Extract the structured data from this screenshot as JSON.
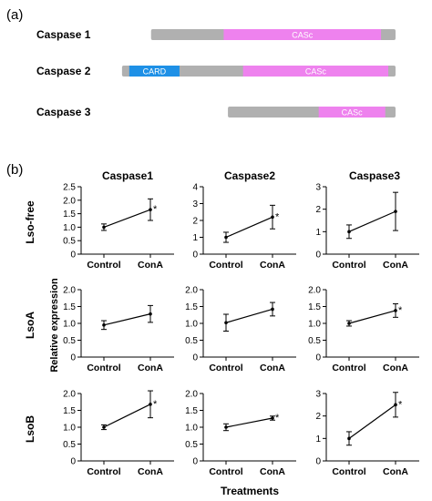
{
  "panel_a": {
    "label": "(a)",
    "proteins": [
      {
        "name": "Caspase 1",
        "length": 404,
        "domains": [
          {
            "name": "CASc",
            "start": 120,
            "end": 380,
            "color": "#ee82ee"
          }
        ]
      },
      {
        "name": "Caspase 2",
        "length": 452,
        "domains": [
          {
            "name": "CARD",
            "start": 12,
            "end": 95,
            "color": "#1e90e6"
          },
          {
            "name": "CASc",
            "start": 200,
            "end": 440,
            "color": "#ee82ee"
          }
        ]
      },
      {
        "name": "Caspase 3",
        "length": 277,
        "domains": [
          {
            "name": "CASc",
            "start": 150,
            "end": 260,
            "color": "#ee82ee"
          }
        ]
      }
    ],
    "bar_color": "#b0b0b0"
  },
  "panel_b": {
    "label": "(b)",
    "column_titles": [
      "Caspase1",
      "Caspase2",
      "Caspase3"
    ],
    "row_titles": [
      "Lso-free",
      "LsoA",
      "LsoB"
    ],
    "ylabel": "Relative expression",
    "xlabel": "Treatments"
  },
  "chart_data": [
    {
      "type": "line",
      "row": "Lso-free",
      "column": "Caspase1",
      "categories": [
        "Control",
        "ConA"
      ],
      "values": [
        1.0,
        1.65
      ],
      "errors": [
        0.12,
        0.4
      ],
      "ylim": [
        0,
        2.5
      ],
      "yticks": [
        "0",
        "0.5",
        "1.0",
        "1.5",
        "2.0",
        "2.5"
      ],
      "significant": "*"
    },
    {
      "type": "line",
      "row": "Lso-free",
      "column": "Caspase2",
      "categories": [
        "Control",
        "ConA"
      ],
      "values": [
        1.0,
        2.2
      ],
      "errors": [
        0.3,
        0.7
      ],
      "ylim": [
        0,
        4
      ],
      "yticks": [
        "0",
        "1",
        "2",
        "3",
        "4"
      ],
      "significant": "*"
    },
    {
      "type": "line",
      "row": "Lso-free",
      "column": "Caspase3",
      "categories": [
        "Control",
        "ConA"
      ],
      "values": [
        1.0,
        1.9
      ],
      "errors": [
        0.3,
        0.85
      ],
      "ylim": [
        0,
        3
      ],
      "yticks": [
        "0",
        "1",
        "2",
        "3"
      ],
      "significant": ""
    },
    {
      "type": "line",
      "row": "LsoA",
      "column": "Caspase1",
      "categories": [
        "Control",
        "ConA"
      ],
      "values": [
        0.95,
        1.28
      ],
      "errors": [
        0.13,
        0.25
      ],
      "ylim": [
        0,
        2.0
      ],
      "yticks": [
        "0",
        "0.5",
        "1.0",
        "1.5",
        "2.0"
      ],
      "significant": ""
    },
    {
      "type": "line",
      "row": "LsoA",
      "column": "Caspase2",
      "categories": [
        "Control",
        "ConA"
      ],
      "values": [
        1.02,
        1.42
      ],
      "errors": [
        0.25,
        0.2
      ],
      "ylim": [
        0,
        2.0
      ],
      "yticks": [
        "0",
        "0.5",
        "1.0",
        "1.5",
        "2.0"
      ],
      "significant": ""
    },
    {
      "type": "line",
      "row": "LsoA",
      "column": "Caspase3",
      "categories": [
        "Control",
        "ConA"
      ],
      "values": [
        1.0,
        1.38
      ],
      "errors": [
        0.08,
        0.2
      ],
      "ylim": [
        0,
        2.0
      ],
      "yticks": [
        "0",
        "0.5",
        "1.0",
        "1.5",
        "2.0"
      ],
      "significant": "*"
    },
    {
      "type": "line",
      "row": "LsoB",
      "column": "Caspase1",
      "categories": [
        "Control",
        "ConA"
      ],
      "values": [
        1.0,
        1.68
      ],
      "errors": [
        0.07,
        0.4
      ],
      "ylim": [
        0,
        2.0
      ],
      "yticks": [
        "0",
        "0.5",
        "1.0",
        "1.5",
        "2.0"
      ],
      "significant": "*"
    },
    {
      "type": "line",
      "row": "LsoB",
      "column": "Caspase2",
      "categories": [
        "Control",
        "ConA"
      ],
      "values": [
        1.0,
        1.27
      ],
      "errors": [
        0.1,
        0.06
      ],
      "ylim": [
        0,
        2.0
      ],
      "yticks": [
        "0",
        "0.5",
        "1.0",
        "1.5",
        "2.0"
      ],
      "significant": "*"
    },
    {
      "type": "line",
      "row": "LsoB",
      "column": "Caspase3",
      "categories": [
        "Control",
        "ConA"
      ],
      "values": [
        1.0,
        2.5
      ],
      "errors": [
        0.3,
        0.55
      ],
      "ylim": [
        0,
        3
      ],
      "yticks": [
        "0",
        "1",
        "2",
        "3"
      ],
      "significant": "*"
    }
  ]
}
